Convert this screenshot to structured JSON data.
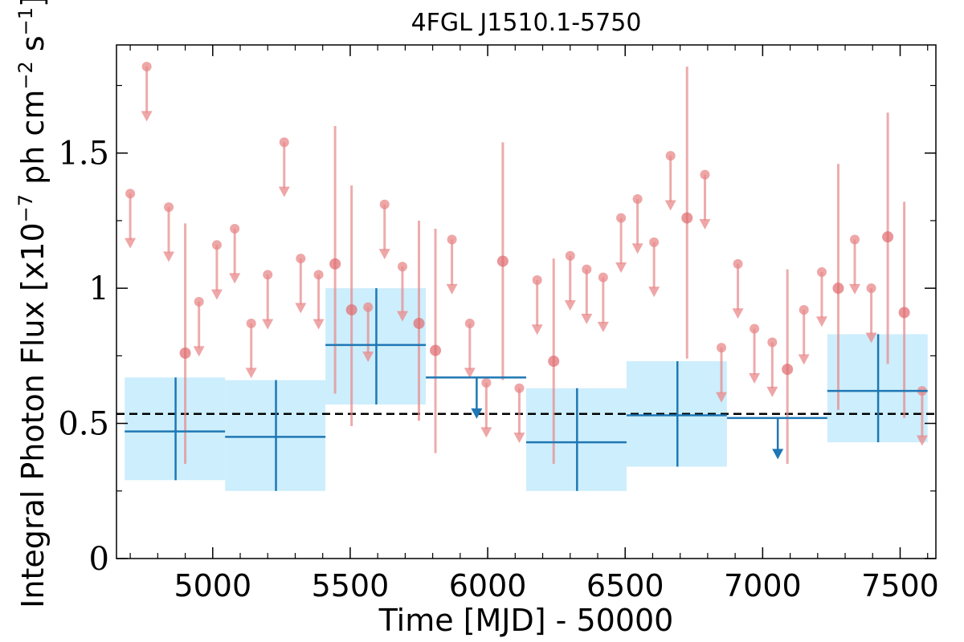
{
  "chart_data": {
    "type": "scatter",
    "title": "4FGL J1510.1-5750",
    "xlabel": "Time [MJD] - 50000",
    "ylabel_main": "Integral Photon Flux [x10",
    "ylabel_exp1": "−7",
    "ylabel_mid": " ph cm",
    "ylabel_exp2": "−2",
    "ylabel_s": " s",
    "ylabel_exp3": "−1",
    "ylabel_end": "]",
    "xlim": [
      4650,
      7630
    ],
    "ylim": [
      0,
      1.9
    ],
    "x_ticks": [
      5000,
      5500,
      6000,
      6500,
      7000,
      7500
    ],
    "x_tick_labels": [
      "5000",
      "5500",
      "6000",
      "6500",
      "7000",
      "7500"
    ],
    "y_ticks": [
      0,
      0.5,
      1,
      1.5
    ],
    "y_tick_labels": [
      "0",
      "0.5",
      "1",
      "1.5"
    ],
    "grid": false,
    "mean_flux": 0.535,
    "colors": {
      "fine": "#e8888a",
      "coarse": "#1f77b4",
      "band": "#cdeefc",
      "mean": "#000000"
    },
    "series": [
      {
        "points": [
          {
            "x": 4700,
            "y": 1.35,
            "ul": true
          },
          {
            "x": 4760,
            "y": 1.82,
            "ul": true
          },
          {
            "x": 4840,
            "y": 1.3,
            "ul": true
          },
          {
            "x": 4900,
            "y": 0.76,
            "err_lo": 0.35,
            "err_hi": 1.24
          },
          {
            "x": 4950,
            "y": 0.95,
            "ul": true
          },
          {
            "x": 5015,
            "y": 1.16,
            "ul": true
          },
          {
            "x": 5080,
            "y": 1.22,
            "ul": true
          },
          {
            "x": 5140,
            "y": 0.87,
            "ul": true
          },
          {
            "x": 5200,
            "y": 1.05,
            "ul": true
          },
          {
            "x": 5260,
            "y": 1.54,
            "ul": true
          },
          {
            "x": 5320,
            "y": 1.11,
            "ul": true
          },
          {
            "x": 5385,
            "y": 1.05,
            "ul": true
          },
          {
            "x": 5445,
            "y": 1.09,
            "err_lo": 0.61,
            "err_hi": 1.6
          },
          {
            "x": 5505,
            "y": 0.92,
            "err_lo": 0.49,
            "err_hi": 1.38
          },
          {
            "x": 5565,
            "y": 0.93,
            "ul": true
          },
          {
            "x": 5625,
            "y": 1.31,
            "ul": true
          },
          {
            "x": 5690,
            "y": 1.08,
            "ul": true
          },
          {
            "x": 5750,
            "y": 0.87,
            "err_lo": 0.51,
            "err_hi": 1.25
          },
          {
            "x": 5810,
            "y": 0.77,
            "err_lo": 0.39,
            "err_hi": 1.22
          },
          {
            "x": 5870,
            "y": 1.18,
            "ul": true
          },
          {
            "x": 5935,
            "y": 0.87,
            "ul": true
          },
          {
            "x": 5995,
            "y": 0.65,
            "ul": true
          },
          {
            "x": 6055,
            "y": 1.1,
            "err_lo": 0.66,
            "err_hi": 1.54
          },
          {
            "x": 6115,
            "y": 0.63,
            "ul": true
          },
          {
            "x": 6180,
            "y": 1.03,
            "ul": true
          },
          {
            "x": 6240,
            "y": 0.73,
            "err_lo": 0.35,
            "err_hi": 1.11
          },
          {
            "x": 6300,
            "y": 1.12,
            "ul": true
          },
          {
            "x": 6360,
            "y": 1.07,
            "ul": true
          },
          {
            "x": 6420,
            "y": 1.04,
            "ul": true
          },
          {
            "x": 6485,
            "y": 1.26,
            "ul": true
          },
          {
            "x": 6545,
            "y": 1.33,
            "ul": true
          },
          {
            "x": 6605,
            "y": 1.17,
            "ul": true
          },
          {
            "x": 6665,
            "y": 1.49,
            "ul": true
          },
          {
            "x": 6725,
            "y": 1.26,
            "err_lo": 0.74,
            "err_hi": 1.82
          },
          {
            "x": 6790,
            "y": 1.42,
            "ul": true
          },
          {
            "x": 6850,
            "y": 0.78,
            "ul": true
          },
          {
            "x": 6910,
            "y": 1.09,
            "ul": true
          },
          {
            "x": 6970,
            "y": 0.85,
            "ul": true
          },
          {
            "x": 7035,
            "y": 0.8,
            "ul": true
          },
          {
            "x": 7090,
            "y": 0.7,
            "err_lo": 0.35,
            "err_hi": 1.07
          },
          {
            "x": 7150,
            "y": 0.92,
            "ul": true
          },
          {
            "x": 7215,
            "y": 1.06,
            "ul": true
          },
          {
            "x": 7275,
            "y": 1.0,
            "err_lo": 0.55,
            "err_hi": 1.46
          },
          {
            "x": 7335,
            "y": 1.18,
            "ul": true
          },
          {
            "x": 7395,
            "y": 1.0,
            "ul": true
          },
          {
            "x": 7455,
            "y": 1.19,
            "err_lo": 0.72,
            "err_hi": 1.65
          },
          {
            "x": 7515,
            "y": 0.91,
            "err_lo": 0.52,
            "err_hi": 1.32
          },
          {
            "x": 7580,
            "y": 0.62,
            "ul": true
          }
        ]
      },
      {
        "bins": [
          {
            "x0": 4680,
            "x1": 5045,
            "xc": 4865,
            "y": 0.47,
            "lo": 0.29,
            "hi": 0.67
          },
          {
            "x0": 5045,
            "x1": 5410,
            "xc": 5230,
            "y": 0.45,
            "lo": 0.25,
            "hi": 0.66
          },
          {
            "x0": 5410,
            "x1": 5775,
            "xc": 5595,
            "y": 0.79,
            "lo": 0.57,
            "hi": 1.0
          },
          {
            "x0": 5775,
            "x1": 6140,
            "xc": 5960,
            "y": 0.67,
            "ul": true
          },
          {
            "x0": 6140,
            "x1": 6505,
            "xc": 6325,
            "y": 0.43,
            "lo": 0.25,
            "hi": 0.63
          },
          {
            "x0": 6505,
            "x1": 6870,
            "xc": 6690,
            "y": 0.53,
            "lo": 0.34,
            "hi": 0.73
          },
          {
            "x0": 6870,
            "x1": 7235,
            "xc": 7055,
            "y": 0.52,
            "ul": true
          },
          {
            "x0": 7235,
            "x1": 7600,
            "xc": 7420,
            "y": 0.62,
            "lo": 0.43,
            "hi": 0.83
          }
        ]
      }
    ]
  }
}
